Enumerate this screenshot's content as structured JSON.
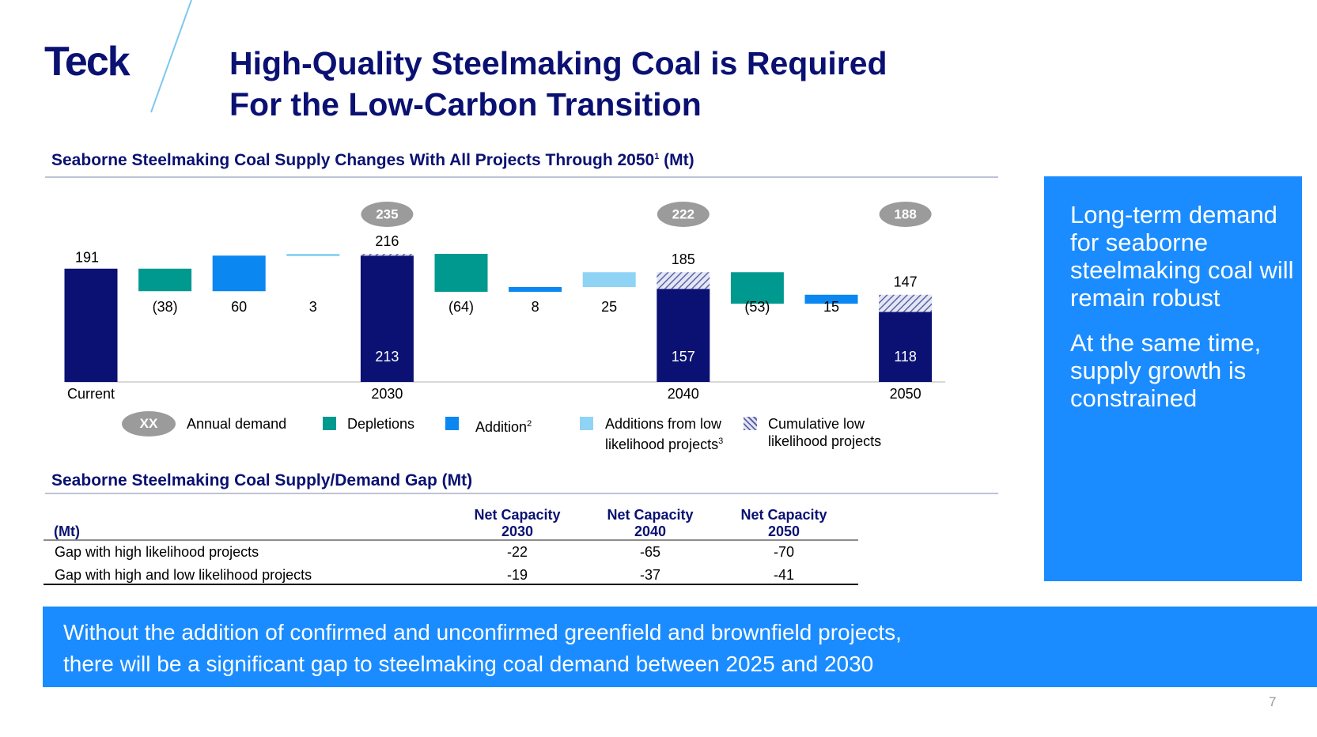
{
  "logo": "Teck",
  "header": {
    "title_lines": [
      "High-Quality Steelmaking Coal is Required",
      "For the Low-Carbon Transition"
    ]
  },
  "chart_data": {
    "type": "waterfall",
    "title": "Seaborne Steelmaking Coal Supply Changes With All Projects Through 2050",
    "title_note": "1",
    "title_unit": "(Mt)",
    "categories": [
      "Current",
      null,
      null,
      null,
      "2030",
      null,
      null,
      null,
      "2040",
      null,
      null,
      "2050"
    ],
    "values": [
      191,
      -38,
      60,
      3,
      213,
      -64,
      8,
      25,
      157,
      -53,
      15,
      118
    ],
    "value_labels": [
      "191",
      "(38)",
      "60",
      "3",
      "213",
      "(64)",
      "8",
      "25",
      "157",
      "(53)",
      "15",
      "118"
    ],
    "colors": [
      "#0a1172",
      "#00998f",
      "#0a87f0",
      "#8fd4f5",
      "#0a1172",
      "#00998f",
      "#0a87f0",
      "#8fd4f5",
      "#0a1172",
      "#00998f",
      "#0a87f0",
      "#0a1172"
    ],
    "low_values": [
      null,
      null,
      null,
      null,
      3,
      null,
      null,
      null,
      28,
      null,
      null,
      29
    ],
    "low_color": "#5b63a8",
    "top_labels": [
      null,
      null,
      null,
      null,
      216,
      null,
      null,
      null,
      185,
      null,
      null,
      147
    ],
    "demand": [
      null,
      null,
      null,
      null,
      235,
      null,
      null,
      null,
      222,
      null,
      null,
      188
    ],
    "legend": [
      {
        "symbol": "XX",
        "name": "Annual demand"
      },
      {
        "name": "Depletions",
        "color": "#00998f"
      },
      {
        "name": "Addition",
        "note": "2",
        "color": "#0a87f0"
      },
      {
        "name": "Additions from low likelihood projects",
        "note": "3",
        "color": "#8fd4f5"
      },
      {
        "name": "Cumulative low likelihood projects",
        "color": "#5b63a8"
      }
    ]
  },
  "table": {
    "title": "Seaborne Steelmaking Coal Supply/Demand Gap (Mt)",
    "corner": "(Mt)",
    "columns": [
      [
        "Net Capacity",
        "2030"
      ],
      [
        "Net Capacity",
        "2040"
      ],
      [
        "Net Capacity",
        "2050"
      ]
    ],
    "rows": [
      [
        "Gap with high likelihood projects",
        -22,
        -65,
        -70
      ],
      [
        "Gap with high and low likelihood projects",
        -19,
        -37,
        -41
      ]
    ]
  },
  "sidebar": [
    "Long-term demand for seaborne steelmaking coal will remain robust",
    "At the same time, supply growth is constrained"
  ],
  "banner": [
    "Without the addition of confirmed and unconfirmed greenfield and brownfield projects,",
    "there will be a significant gap to steelmaking coal demand between 2025 and 2030"
  ],
  "page_number": 7
}
